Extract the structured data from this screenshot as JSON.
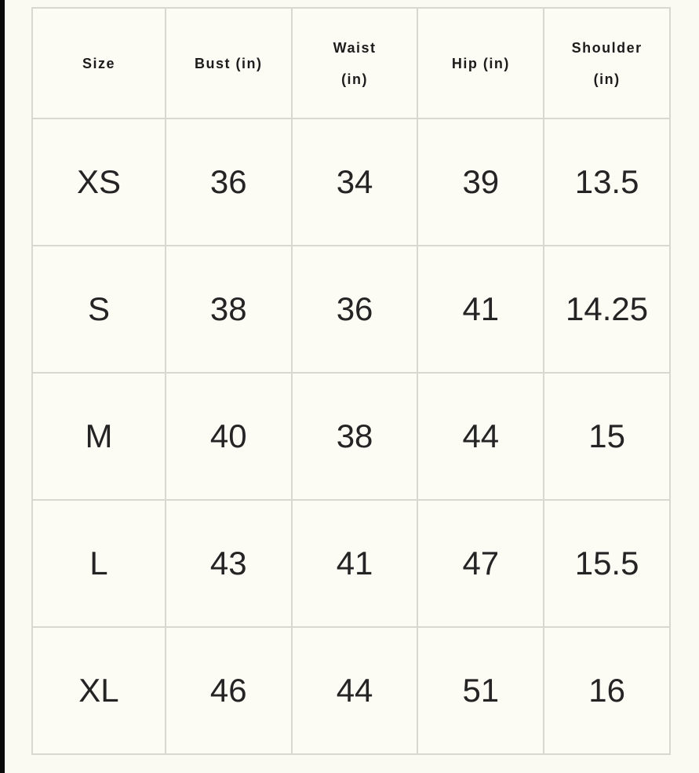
{
  "page": {
    "background_color": "#fbfaf2",
    "left_frame_bar_color": "#0a0a0a",
    "grid_border_color": "#d8d8d0",
    "text_color": "#242424"
  },
  "chart_data": {
    "type": "table",
    "title": "",
    "columns": [
      "Size",
      "Bust (in)",
      "Waist (in)",
      "Hip (in)",
      "Shoulder (in)"
    ],
    "rows": [
      [
        "XS",
        "36",
        "34",
        "39",
        "13.5"
      ],
      [
        "S",
        "38",
        "36",
        "41",
        "14.25"
      ],
      [
        "M",
        "40",
        "38",
        "44",
        "15"
      ],
      [
        "L",
        "43",
        "41",
        "47",
        "15.5"
      ],
      [
        "XL",
        "46",
        "44",
        "51",
        "16"
      ]
    ]
  },
  "table": {
    "columns": [
      {
        "id": "size",
        "lines": [
          "Size"
        ]
      },
      {
        "id": "bust",
        "lines": [
          "Bust (in)"
        ]
      },
      {
        "id": "waist",
        "lines": [
          "Waist",
          "(in)"
        ]
      },
      {
        "id": "hip",
        "lines": [
          "Hip (in)"
        ]
      },
      {
        "id": "shoulder",
        "lines": [
          "Shoulder",
          "(in)"
        ]
      }
    ],
    "rows": [
      {
        "cells": [
          "XS",
          "36",
          "34",
          "39",
          "13.5"
        ]
      },
      {
        "cells": [
          "S",
          "38",
          "36",
          "41",
          "14.25"
        ]
      },
      {
        "cells": [
          "M",
          "40",
          "38",
          "44",
          "15"
        ]
      },
      {
        "cells": [
          "L",
          "43",
          "41",
          "47",
          "15.5"
        ]
      },
      {
        "cells": [
          "XL",
          "46",
          "44",
          "51",
          "16"
        ]
      }
    ]
  }
}
